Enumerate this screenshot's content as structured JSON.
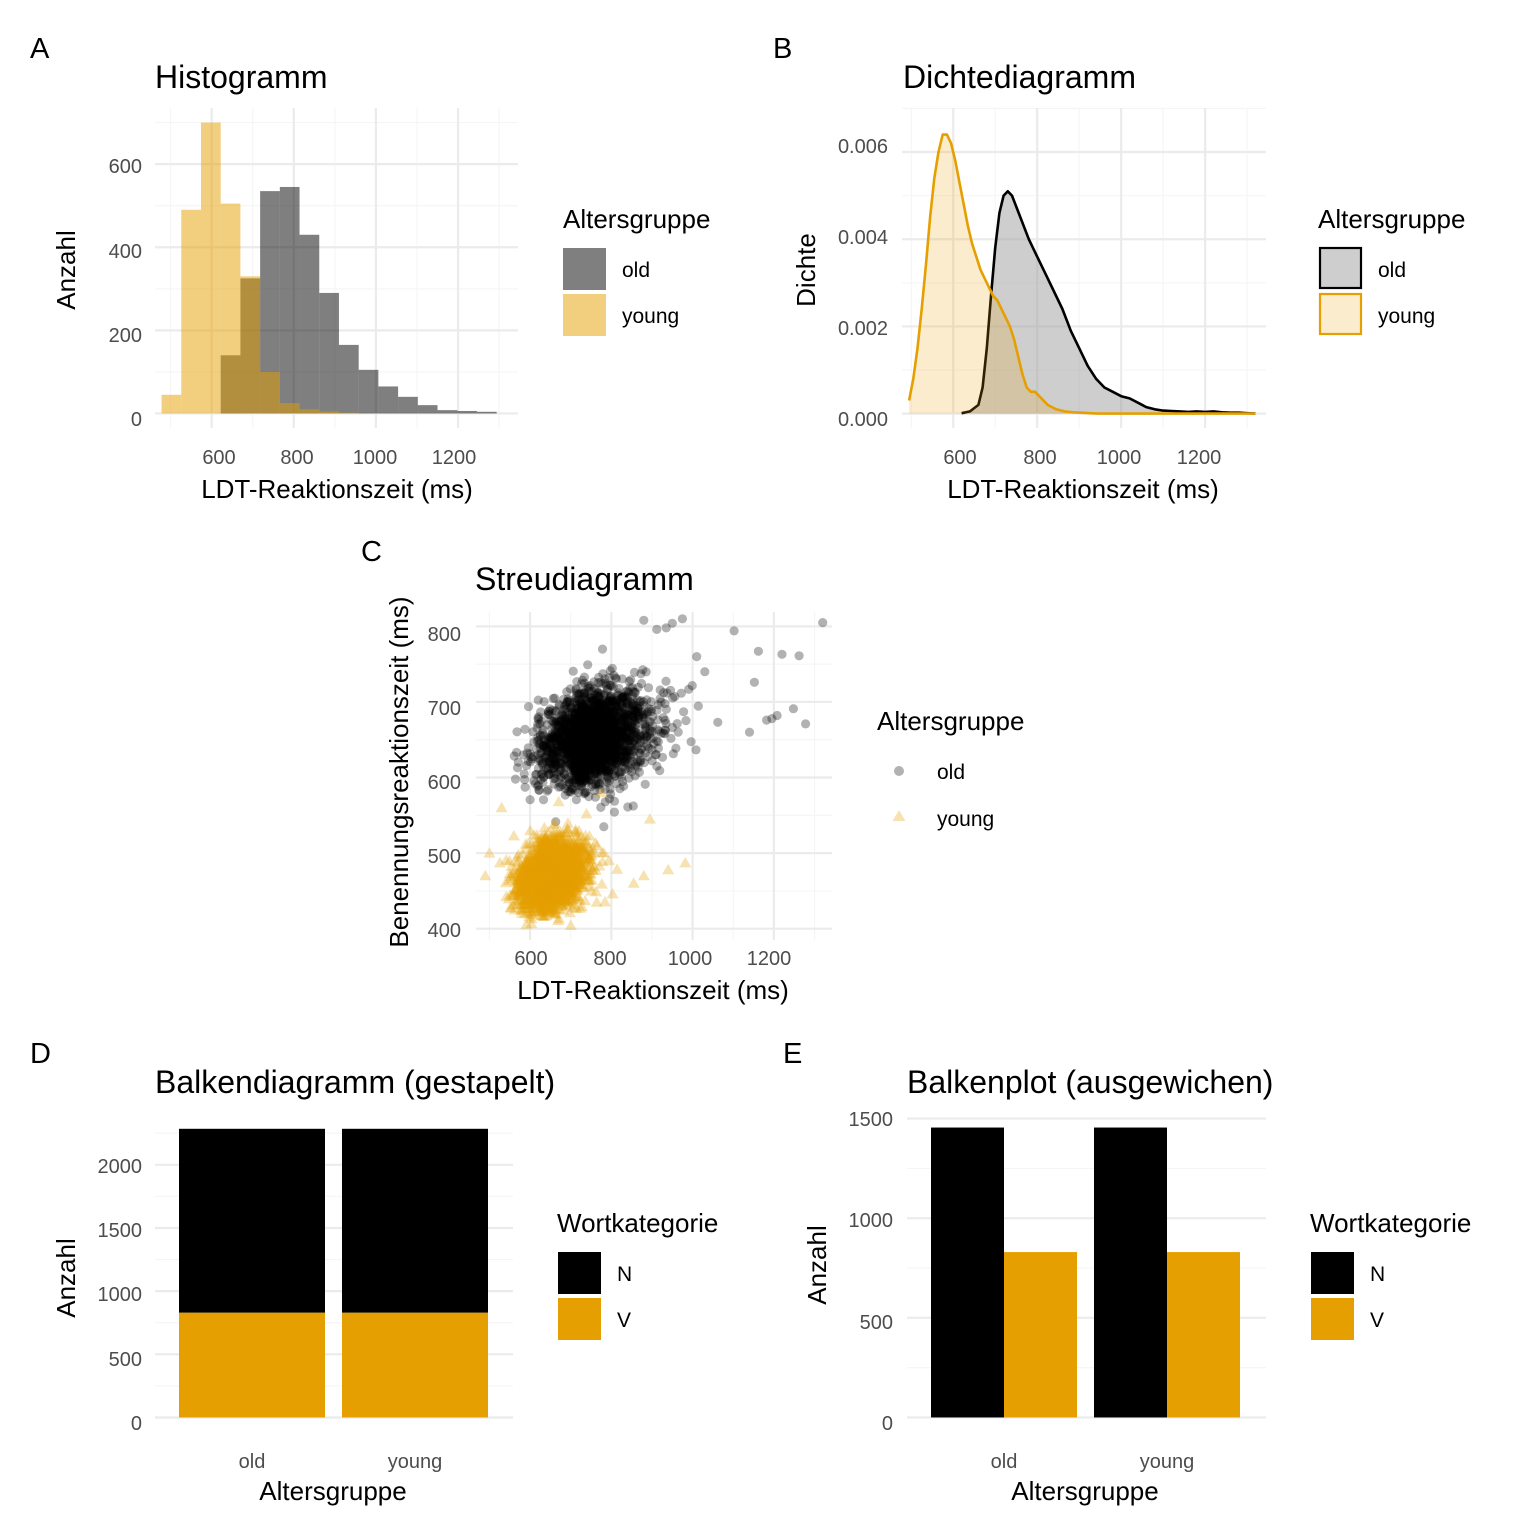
{
  "colors": {
    "old": "#000000",
    "young": "#E69F00",
    "grid_major": "#EBEBEB",
    "grid_minor": "#F5F5F5",
    "tick_text": "#4D4D4D"
  },
  "chart_data": [
    {
      "tag": "A",
      "type": "bar",
      "subtype": "histogram",
      "title": "Histogramm",
      "xlabel": "LDT-Reaktionszeit (ms)",
      "ylabel": "Anzahl",
      "xticks": [
        "600",
        "800",
        "1000",
        "1200"
      ],
      "yticks": [
        "0",
        "200",
        "400",
        "600"
      ],
      "xlim": [
        462,
        1346
      ],
      "ylim": [
        -35,
        735
      ],
      "legend_title": "Altersgruppe",
      "legend_position": "right",
      "bin_width": 48,
      "series": [
        {
          "name": "old",
          "color": "#000000",
          "alpha": 0.5,
          "bin_start": [
            622,
            670,
            718,
            766,
            814,
            862,
            910,
            958,
            1006,
            1054,
            1102,
            1150,
            1198,
            1246
          ],
          "counts": [
            140,
            325,
            535,
            545,
            430,
            290,
            165,
            105,
            65,
            40,
            20,
            8,
            6,
            4
          ]
        },
        {
          "name": "young",
          "color": "#E69F00",
          "alpha": 0.5,
          "bin_start": [
            478,
            526,
            574,
            622,
            670,
            718,
            766,
            814,
            862,
            910
          ],
          "counts": [
            45,
            490,
            700,
            505,
            330,
            100,
            25,
            10,
            5,
            2
          ]
        }
      ]
    },
    {
      "tag": "B",
      "type": "area",
      "subtype": "density",
      "title": "Dichtediagramm",
      "xlabel": "LDT-Reaktionszeit (ms)",
      "ylabel": "Dichte",
      "xticks": [
        "600",
        "800",
        "1000",
        "1200"
      ],
      "yticks": [
        "0.000",
        "0.002",
        "0.004",
        "0.006"
      ],
      "xlim": [
        478,
        1345
      ],
      "ylim": [
        -0.00033,
        0.00701
      ],
      "legend_title": "Altersgruppe",
      "legend_position": "right",
      "series": [
        {
          "name": "old",
          "line": "#000000",
          "fill": "#9E9E9E",
          "alpha": 0.5,
          "x": [
            620,
            640,
            660,
            670,
            680,
            690,
            700,
            710,
            720,
            730,
            740,
            760,
            780,
            800,
            820,
            840,
            860,
            880,
            900,
            920,
            940,
            960,
            980,
            1000,
            1020,
            1040,
            1060,
            1080,
            1100,
            1120,
            1140,
            1160,
            1180,
            1200,
            1220,
            1240,
            1260,
            1280,
            1300,
            1320
          ],
          "y": [
            1e-05,
            5e-05,
            0.0002,
            0.0006,
            0.0015,
            0.0027,
            0.0038,
            0.0046,
            0.005,
            0.0051,
            0.005,
            0.0045,
            0.004,
            0.0036,
            0.0032,
            0.0028,
            0.0024,
            0.0019,
            0.0015,
            0.0011,
            0.0008,
            0.0006,
            0.0005,
            0.0004,
            0.00035,
            0.00025,
            0.00015,
            0.0001,
            7e-05,
            6e-05,
            5e-05,
            4e-05,
            5e-05,
            4e-05,
            5e-05,
            3e-05,
            2e-05,
            2e-05,
            1e-05,
            0.0
          ]
        },
        {
          "name": "young",
          "line": "#E69F00",
          "fill": "#E69F00",
          "alpha": 0.2,
          "x": [
            495,
            505,
            515,
            525,
            535,
            545,
            555,
            565,
            575,
            585,
            595,
            605,
            615,
            625,
            635,
            645,
            655,
            665,
            675,
            685,
            695,
            705,
            715,
            725,
            735,
            745,
            755,
            765,
            775,
            785,
            795,
            805,
            825,
            845,
            865,
            885,
            905,
            925,
            945,
            975,
            1000,
            1050,
            1100,
            1150,
            1200,
            1250,
            1300,
            1320
          ],
          "y": [
            0.0003,
            0.0008,
            0.0015,
            0.0024,
            0.0034,
            0.0045,
            0.0054,
            0.006,
            0.0064,
            0.0064,
            0.0062,
            0.0058,
            0.0053,
            0.0048,
            0.0043,
            0.0039,
            0.0036,
            0.0033,
            0.0031,
            0.0029,
            0.0027,
            0.0026,
            0.0024,
            0.0022,
            0.002,
            0.0017,
            0.0013,
            0.0009,
            0.0006,
            0.0005,
            0.0005,
            0.0004,
            0.0002,
            0.0001,
            5e-05,
            3e-05,
            2e-05,
            1e-05,
            0.0,
            0.0,
            0.0,
            0.0,
            0.0,
            0.0,
            0.0,
            0.0,
            0.0,
            0.0
          ]
        }
      ]
    },
    {
      "tag": "C",
      "type": "scatter",
      "title": "Streudiagramm",
      "xlabel": "LDT-Reaktionszeit (ms)",
      "ylabel": "Benennungsreaktionszeit (ms)",
      "xticks": [
        "600",
        "800",
        "1000",
        "1200"
      ],
      "yticks": [
        "400",
        "500",
        "600",
        "700",
        "800"
      ],
      "xlim": [
        467,
        1343
      ],
      "ylim": [
        385,
        819
      ],
      "legend_title": "Altersgruppe",
      "legend_position": "right",
      "series": [
        {
          "name": "old",
          "color": "#000000",
          "shape": "circle",
          "alpha": 0.3,
          "cluster": {
            "n": 2300,
            "x_mean": 735,
            "x_sd": 85,
            "y_mean": 650,
            "y_sd": 30
          },
          "points": [
            [
              1320,
              805
            ],
            [
              1278,
              671
            ],
            [
              1262,
              761
            ],
            [
              1248,
              691
            ],
            [
              1220,
              763
            ],
            [
              1208,
              682
            ],
            [
              1195,
              678
            ],
            [
              1182,
              676
            ],
            [
              1162,
              767
            ],
            [
              1152,
              726
            ],
            [
              1102,
              794
            ],
            [
              1062,
              673
            ],
            [
              975,
              810
            ],
            [
              950,
              804
            ],
            [
              935,
              798
            ],
            [
              912,
              796
            ],
            [
              880,
              808
            ],
            [
              1010,
              760
            ],
            [
              1030,
              740
            ],
            [
              1140,
              660
            ]
          ]
        },
        {
          "name": "young",
          "color": "#E69F00",
          "shape": "triangle",
          "alpha": 0.3,
          "cluster": {
            "n": 2300,
            "x_mean": 640,
            "x_sd": 50,
            "y_mean": 470,
            "y_sd": 22
          },
          "points": [
            [
              982,
              487
            ],
            [
              940,
              478
            ],
            [
              895,
              545
            ],
            [
              880,
              470
            ],
            [
              855,
              460
            ],
            [
              530,
              560
            ],
            [
              775,
              580
            ],
            [
              500,
              500
            ],
            [
              490,
              470
            ]
          ]
        }
      ]
    },
    {
      "tag": "D",
      "type": "bar",
      "subtype": "stacked",
      "title": "Balkendiagramm (gestapelt)",
      "xlabel": "Altersgruppe",
      "ylabel": "Anzahl",
      "categories": [
        "old",
        "young"
      ],
      "yticks": [
        "0",
        "500",
        "1000",
        "1500",
        "2000"
      ],
      "ylim": [
        -115,
        2410
      ],
      "legend_title": "Wortkategorie",
      "legend_position": "right",
      "series": [
        {
          "name": "N",
          "color": "#000000",
          "values": [
            1455,
            1455
          ]
        },
        {
          "name": "V",
          "color": "#E69F00",
          "values": [
            830,
            830
          ]
        }
      ]
    },
    {
      "tag": "E",
      "type": "bar",
      "subtype": "dodged",
      "title": "Balkenplot (ausgewichen)",
      "xlabel": "Altersgruppe",
      "ylabel": "Anzahl",
      "categories": [
        "old",
        "young"
      ],
      "yticks": [
        "0",
        "500",
        "1000",
        "1500"
      ],
      "ylim": [
        -73,
        1528
      ],
      "legend_title": "Wortkategorie",
      "legend_position": "right",
      "series": [
        {
          "name": "N",
          "color": "#000000",
          "values": [
            1455,
            1455
          ]
        },
        {
          "name": "V",
          "color": "#E69F00",
          "values": [
            830,
            830
          ]
        }
      ]
    }
  ]
}
